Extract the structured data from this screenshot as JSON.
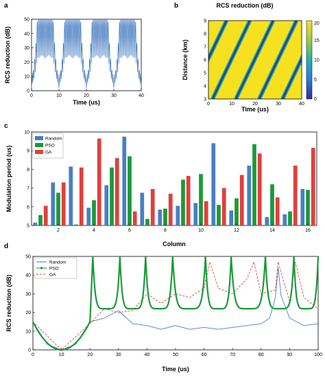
{
  "panel_letters": {
    "a": "a",
    "b": "b",
    "c": "c",
    "d": "d"
  },
  "colors": {
    "random": "#4a7fc1",
    "pso": "#1a9a3a",
    "ga": "#e0403c",
    "heat_high": "#f5e11f",
    "heat_low": "#2a3f8f",
    "heat_mid": "#1fa6a0"
  },
  "chart_data": [
    {
      "id": "a",
      "type": "line",
      "xlabel": "Time (us)",
      "ylabel": "RCS reduction (dB)",
      "xlim": [
        0,
        40
      ],
      "ylim": [
        0,
        50
      ],
      "xticks": [
        "0",
        "10",
        "20",
        "30",
        "40"
      ],
      "yticks": [
        "0",
        "10",
        "20",
        "30",
        "40",
        "50"
      ],
      "period": 10,
      "dips_at": [
        0,
        10,
        20,
        30,
        40
      ],
      "peak": 50
    },
    {
      "id": "b",
      "type": "heatmap",
      "title": "RCS reduction (dB)",
      "xlabel": "Time (us)",
      "ylabel": "Distance (km)",
      "xlim": [
        0,
        40
      ],
      "ylim": [
        3,
        9
      ],
      "xticks": [
        "0",
        "10",
        "20",
        "30",
        "40"
      ],
      "yticks": [
        "3",
        "4",
        "5",
        "6",
        "7",
        "8",
        "9"
      ],
      "colorbar_ticks": [
        "0",
        "5",
        "10",
        "15",
        "20"
      ],
      "colorbar_range": [
        0,
        20
      ],
      "stripe_period": 10
    },
    {
      "id": "c",
      "type": "bar",
      "xlabel": "Column",
      "ylabel": "Modulation period (us)",
      "ylim": [
        5,
        10
      ],
      "yticks": [
        "5",
        "6",
        "7",
        "8",
        "9",
        "10"
      ],
      "xticks": [
        "2",
        "4",
        "6",
        "8",
        "10",
        "12",
        "14",
        "16"
      ],
      "categories": [
        1,
        2,
        3,
        4,
        5,
        6,
        7,
        8,
        9,
        10,
        11,
        12,
        13,
        14,
        15,
        16
      ],
      "series": [
        {
          "name": "Random",
          "values": [
            5.15,
            7.3,
            8.15,
            5.95,
            7.15,
            9.75,
            6.75,
            5.85,
            6.05,
            6.2,
            9.4,
            5.8,
            8.2,
            5.45,
            5.6,
            6.95
          ]
        },
        {
          "name": "PSO",
          "values": [
            5.55,
            6.75,
            5.05,
            6.35,
            8.1,
            8.7,
            5.35,
            5.9,
            7.45,
            7.75,
            6.1,
            6.45,
            9.35,
            7.2,
            5.75,
            6.9
          ]
        },
        {
          "name": "GA",
          "values": [
            6.05,
            7.3,
            8.1,
            9.65,
            8.6,
            5.75,
            6.95,
            6.7,
            7.65,
            6.3,
            7.0,
            7.7,
            8.85,
            6.5,
            8.2,
            9.15
          ]
        }
      ]
    },
    {
      "id": "d",
      "type": "line",
      "xlabel": "Time (us)",
      "ylabel": "RCS reduction (dB)",
      "xlim": [
        0,
        100
      ],
      "ylim": [
        0,
        50
      ],
      "xticks": [
        "0",
        "10",
        "20",
        "30",
        "40",
        "50",
        "60",
        "70",
        "80",
        "90",
        "100"
      ],
      "yticks": [
        "0",
        "10",
        "20",
        "30",
        "40",
        "50"
      ],
      "legend_position": "top-left",
      "series": [
        {
          "name": "Random",
          "x": [
            0,
            5,
            10,
            15,
            20,
            25,
            30,
            35,
            40,
            45,
            50,
            55,
            60,
            65,
            70,
            75,
            80,
            83,
            85,
            86,
            87,
            90,
            95,
            100
          ],
          "y": [
            15,
            3,
            0,
            3,
            15,
            17,
            21,
            14,
            13,
            11,
            13,
            11,
            12,
            11,
            12,
            13,
            14,
            17,
            28,
            44,
            29,
            17,
            13,
            14
          ]
        },
        {
          "name": "PSO",
          "peaks": [
            21,
            30.5,
            39.5,
            49,
            60.5,
            69.5,
            81.5,
            91.5
          ],
          "valley": 22,
          "start": 15
        },
        {
          "name": "GA",
          "peaks": [
            62,
            77.5,
            86,
            92
          ],
          "x": [
            0,
            10,
            20,
            25,
            30,
            35,
            40,
            45,
            50,
            55,
            60,
            62,
            65,
            70,
            75,
            77.5,
            80,
            85,
            86,
            88,
            90,
            92,
            95,
            100
          ],
          "y": [
            15,
            0,
            14,
            22,
            20,
            21,
            30,
            25,
            30,
            28,
            33,
            47,
            33,
            30,
            38,
            47,
            30,
            32,
            47,
            36,
            26,
            47,
            28,
            22
          ]
        }
      ]
    }
  ]
}
